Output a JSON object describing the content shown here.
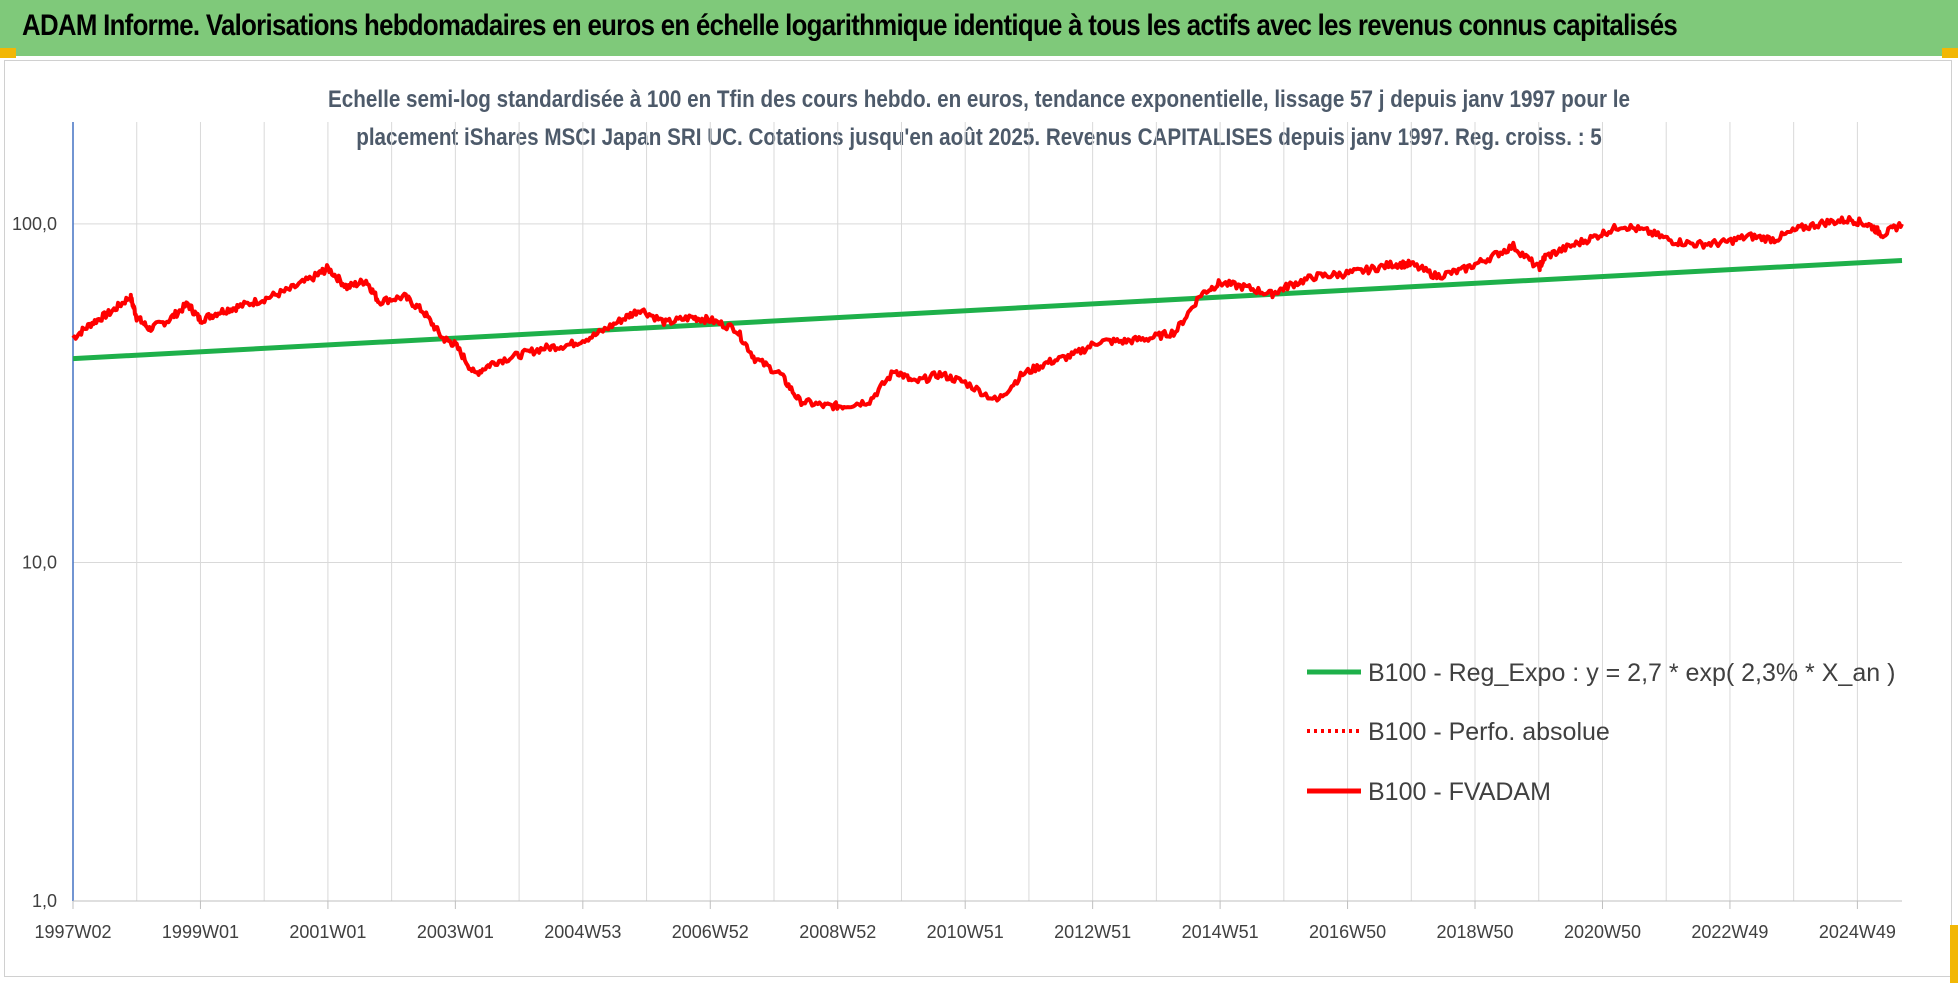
{
  "header": {
    "title": "ADAM Informe. Valorisations hebdomadaires en euros en échelle logarithmique identique à tous les actifs avec les revenus connus capitalisés"
  },
  "colors": {
    "banner": "#7fc97a",
    "trend": "#1eb04a",
    "perf": "#ff0000",
    "grid": "#d9d9d9",
    "axis": "#4472c4"
  },
  "chart_data": {
    "type": "line",
    "title_lines": [
      "Echelle semi-log standardisée à 100 en Tfin des cours hebdo. en euros, tendance exponentielle, lissage 57 j depuis janv 1997 pour le",
      "placement iShares MSCI Japan SRI UC. Cotations jusqu'en août 2025.  Revenus CAPITALISES depuis janv 1997. Reg. croiss. : 5"
    ],
    "y_scale": "log",
    "ylim": [
      1,
      200
    ],
    "y_ticks": [
      {
        "value": 1,
        "label": "1,0"
      },
      {
        "value": 10,
        "label": "10,0"
      },
      {
        "value": 100,
        "label": "100,0"
      }
    ],
    "x_range": [
      1997.0,
      2025.7
    ],
    "x_ticks": [
      {
        "value": 1997.0,
        "label": "1997W02"
      },
      {
        "value": 1999.0,
        "label": "1999W01"
      },
      {
        "value": 2001.0,
        "label": "2001W01"
      },
      {
        "value": 2003.0,
        "label": "2003W01"
      },
      {
        "value": 2005.0,
        "label": "2004W53"
      },
      {
        "value": 2007.0,
        "label": "2006W52"
      },
      {
        "value": 2009.0,
        "label": "2008W52"
      },
      {
        "value": 2011.0,
        "label": "2010W51"
      },
      {
        "value": 2013.0,
        "label": "2012W51"
      },
      {
        "value": 2015.0,
        "label": "2014W51"
      },
      {
        "value": 2017.0,
        "label": "2016W50"
      },
      {
        "value": 2019.0,
        "label": "2018W50"
      },
      {
        "value": 2021.0,
        "label": "2020W50"
      },
      {
        "value": 2023.0,
        "label": "2022W49"
      },
      {
        "value": 2025.0,
        "label": "2024W49"
      }
    ],
    "legend_position": "lower-right",
    "series": [
      {
        "name": "B100 - Reg_Expo : y = 2,7 * exp( 2,3% *  X_an )",
        "style": "solid-green",
        "x": [
          1997.0,
          2025.7
        ],
        "y": [
          40,
          78
        ]
      },
      {
        "name": "B100 - Perfo. absolue",
        "style": "dotted-red",
        "x": [],
        "y": []
      },
      {
        "name": "B100 - FVADAM",
        "style": "solid-red",
        "x": [
          1997.0,
          1997.3,
          1997.6,
          1997.9,
          1998.0,
          1998.2,
          1998.5,
          1998.8,
          1999.0,
          1999.3,
          1999.6,
          2000.0,
          2000.4,
          2000.8,
          2001.0,
          2001.3,
          2001.6,
          2001.8,
          2002.2,
          2002.5,
          2002.8,
          2003.0,
          2003.3,
          2003.6,
          2004.0,
          2004.4,
          2004.8,
          2005.2,
          2005.6,
          2005.9,
          2006.3,
          2006.7,
          2007.0,
          2007.4,
          2007.7,
          2008.1,
          2008.4,
          2008.8,
          2009.1,
          2009.5,
          2009.9,
          2010.2,
          2010.6,
          2011.0,
          2011.5,
          2011.9,
          2012.3,
          2012.7,
          2013.1,
          2013.5,
          2013.9,
          2014.3,
          2014.7,
          2015.0,
          2015.4,
          2015.8,
          2016.1,
          2016.5,
          2016.9,
          2017.3,
          2017.7,
          2018.0,
          2018.4,
          2018.8,
          2019.2,
          2019.6,
          2020.0,
          2020.1,
          2020.5,
          2020.9,
          2021.3,
          2021.7,
          2022.1,
          2022.5,
          2022.9,
          2023.3,
          2023.7,
          2024.1,
          2024.5,
          2024.9,
          2025.2,
          2025.4,
          2025.7
        ],
        "y": [
          46,
          51,
          55,
          61,
          53,
          49,
          52,
          58,
          52,
          55,
          57,
          60,
          64,
          70,
          74,
          65,
          68,
          59,
          61,
          55,
          46,
          44,
          36,
          39,
          41,
          43,
          44,
          47,
          52,
          56,
          51,
          53,
          52,
          49,
          40,
          36,
          30,
          29,
          29,
          30,
          37,
          34,
          36,
          34,
          30,
          36,
          39,
          41,
          45,
          45,
          46,
          48,
          62,
          67,
          65,
          62,
          66,
          70,
          71,
          73,
          76,
          76,
          70,
          73,
          79,
          86,
          74,
          80,
          86,
          92,
          99,
          95,
          89,
          87,
          88,
          92,
          90,
          97,
          101,
          103,
          99,
          93,
          100
        ]
      }
    ]
  }
}
